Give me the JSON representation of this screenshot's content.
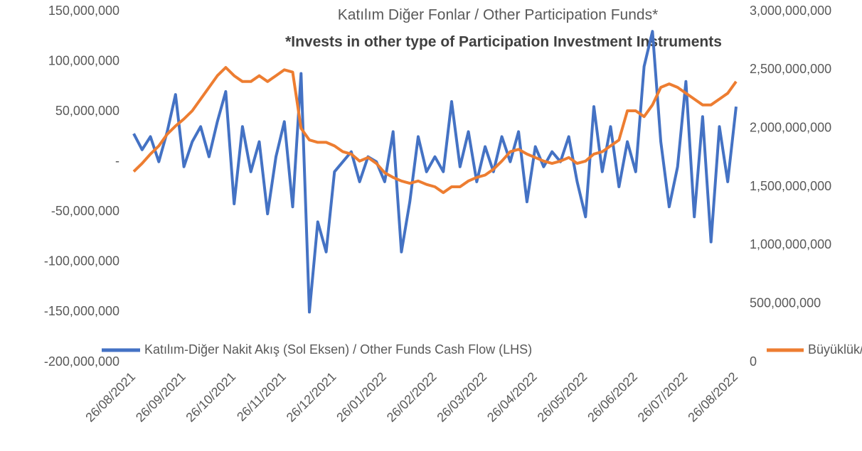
{
  "chart_data": {
    "type": "line",
    "title": "Katılım Diğer Fonlar / Other Participation Funds*",
    "subtitle": "*Invests in other type of Participation Investment Instruments",
    "categories": [
      "26/08/2021",
      null,
      null,
      null,
      null,
      null,
      "26/09/2021",
      null,
      null,
      null,
      null,
      null,
      "26/10/2021",
      null,
      null,
      null,
      null,
      null,
      "26/11/2021",
      null,
      null,
      null,
      null,
      null,
      "26/12/2021",
      null,
      null,
      null,
      null,
      null,
      "26/01/2022",
      null,
      null,
      null,
      null,
      null,
      "26/02/2022",
      null,
      null,
      null,
      null,
      null,
      "26/03/2022",
      null,
      null,
      null,
      null,
      null,
      "26/04/2022",
      null,
      null,
      null,
      null,
      null,
      "26/05/2022",
      null,
      null,
      null,
      null,
      null,
      "26/06/2022",
      null,
      null,
      null,
      null,
      null,
      "26/07/2022",
      null,
      null,
      null,
      null,
      null,
      "26/08/2022"
    ],
    "series": [
      {
        "name": "Katılım-Diğer Nakit Akış (Sol Eksen) / Other Funds Cash Flow (LHS)",
        "color": "#4472c4",
        "values": [
          28000000,
          12000000,
          25000000,
          0,
          30000000,
          67000000,
          -5000000,
          20000000,
          35000000,
          5000000,
          40000000,
          70000000,
          -42000000,
          35000000,
          -10000000,
          20000000,
          -52000000,
          5000000,
          40000000,
          -45000000,
          88000000,
          -150000000,
          -60000000,
          -90000000,
          -10000000,
          0,
          10000000,
          -20000000,
          5000000,
          0,
          -20000000,
          30000000,
          -90000000,
          -40000000,
          25000000,
          -10000000,
          5000000,
          -10000000,
          60000000,
          -5000000,
          30000000,
          -20000000,
          15000000,
          -10000000,
          25000000,
          0,
          30000000,
          -40000000,
          15000000,
          -5000000,
          10000000,
          0,
          25000000,
          -20000000,
          -55000000,
          55000000,
          -10000000,
          35000000,
          -25000000,
          20000000,
          -10000000,
          95000000,
          130000000,
          20000000,
          -45000000,
          -5000000,
          80000000,
          -55000000,
          45000000,
          -80000000,
          35000000,
          -20000000,
          55000000
        ]
      },
      {
        "name": "Büyüklük/AUM",
        "color": "#ed7d31",
        "axis": "y2",
        "values": [
          1630000000,
          1700000000,
          1780000000,
          1850000000,
          1950000000,
          2020000000,
          2080000000,
          2150000000,
          2250000000,
          2350000000,
          2450000000,
          2520000000,
          2450000000,
          2400000000,
          2400000000,
          2450000000,
          2400000000,
          2450000000,
          2500000000,
          2480000000,
          2000000000,
          1900000000,
          1880000000,
          1880000000,
          1850000000,
          1800000000,
          1780000000,
          1720000000,
          1750000000,
          1700000000,
          1620000000,
          1580000000,
          1550000000,
          1530000000,
          1550000000,
          1520000000,
          1500000000,
          1450000000,
          1500000000,
          1500000000,
          1550000000,
          1580000000,
          1600000000,
          1650000000,
          1720000000,
          1800000000,
          1820000000,
          1780000000,
          1750000000,
          1720000000,
          1700000000,
          1720000000,
          1750000000,
          1700000000,
          1720000000,
          1780000000,
          1800000000,
          1850000000,
          1900000000,
          2150000000,
          2150000000,
          2100000000,
          2200000000,
          2350000000,
          2380000000,
          2350000000,
          2300000000,
          2250000000,
          2200000000,
          2200000000,
          2250000000,
          2300000000,
          2400000000
        ]
      }
    ],
    "ylim": [
      -200000000,
      150000000
    ],
    "yticks": [
      {
        "value": -200000000,
        "label": "-200,000,000"
      },
      {
        "value": -150000000,
        "label": "-150,000,000"
      },
      {
        "value": -100000000,
        "label": "-100,000,000"
      },
      {
        "value": -50000000,
        "label": "-50,000,000"
      },
      {
        "value": 0,
        "label": "-"
      },
      {
        "value": 50000000,
        "label": "50,000,000"
      },
      {
        "value": 100000000,
        "label": "100,000,000"
      },
      {
        "value": 150000000,
        "label": "150,000,000"
      }
    ],
    "y2lim": [
      0,
      3000000000
    ],
    "y2ticks": [
      0,
      {
        "value": 500000000,
        "label": "500,000,000"
      },
      {
        "value": 1000000000,
        "label": "1,000,000,000"
      },
      {
        "value": 1500000000,
        "label": "1,500,000,000"
      },
      {
        "value": 2000000000,
        "label": "2,000,000,000"
      },
      {
        "value": 2500000000,
        "label": "2,500,000,000"
      },
      {
        "value": 3000000000,
        "label": "3,000,000,000"
      }
    ],
    "legend": "bottom"
  }
}
